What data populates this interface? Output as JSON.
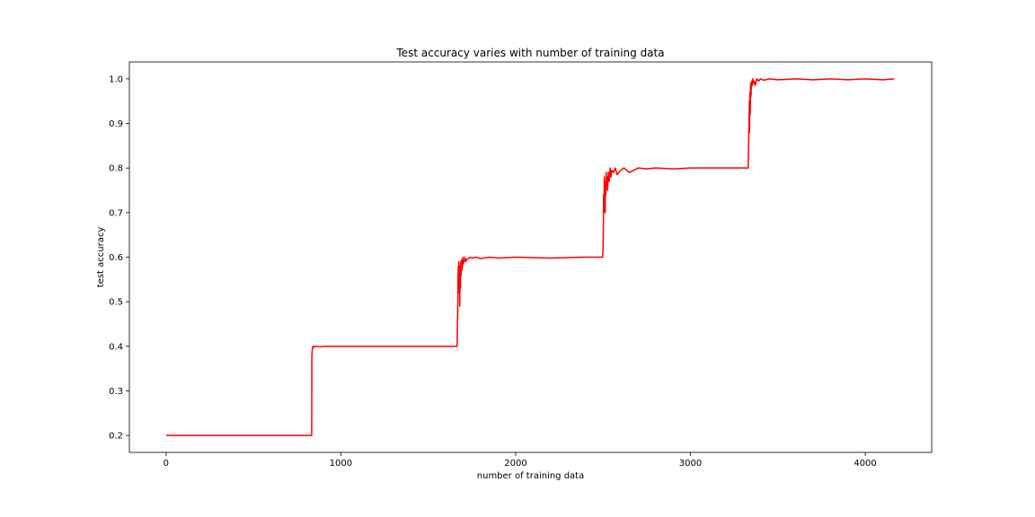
{
  "chart_data": {
    "type": "line",
    "title": "Test accuracy varies with number of training data",
    "xlabel": "number of training data",
    "ylabel": "test accuracy",
    "xlim": [
      -210,
      4380
    ],
    "ylim": [
      0.162,
      1.038
    ],
    "x_ticks": [
      0,
      1000,
      2000,
      3000,
      4000
    ],
    "x_tick_labels": [
      "0",
      "1000",
      "2000",
      "3000",
      "4000"
    ],
    "y_ticks": [
      0.2,
      0.3,
      0.4,
      0.5,
      0.6,
      0.7,
      0.8,
      0.9,
      1.0
    ],
    "y_tick_labels": [
      "0.2",
      "0.3",
      "0.4",
      "0.5",
      "0.6",
      "0.7",
      "0.8",
      "0.9",
      "1.0"
    ],
    "grid": false,
    "legend": "none",
    "series": [
      {
        "name": "test accuracy",
        "color": "#ff0000",
        "x": [
          0,
          833,
          834,
          836,
          838,
          840,
          845,
          850,
          860,
          880,
          900,
          950,
          1000,
          1200,
          1400,
          1600,
          1665,
          1667,
          1669,
          1670,
          1672,
          1673,
          1675,
          1677,
          1678,
          1680,
          1682,
          1684,
          1686,
          1688,
          1690,
          1692,
          1695,
          1698,
          1700,
          1705,
          1710,
          1715,
          1720,
          1730,
          1740,
          1750,
          1770,
          1800,
          1850,
          1900,
          2000,
          2200,
          2400,
          2498,
          2500,
          2502,
          2503,
          2505,
          2507,
          2508,
          2510,
          2512,
          2514,
          2516,
          2518,
          2520,
          2523,
          2526,
          2530,
          2535,
          2540,
          2545,
          2550,
          2560,
          2570,
          2580,
          2600,
          2620,
          2650,
          2700,
          2750,
          2800,
          2900,
          3000,
          3200,
          3330,
          3333,
          3335,
          3337,
          3338,
          3340,
          3342,
          3344,
          3346,
          3348,
          3350,
          3353,
          3356,
          3360,
          3365,
          3370,
          3380,
          3390,
          3400,
          3420,
          3450,
          3500,
          3600,
          3700,
          3800,
          3900,
          4000,
          4100,
          4166
        ],
        "y": [
          0.2,
          0.2,
          0.38,
          0.39,
          0.395,
          0.4,
          0.398,
          0.4,
          0.4,
          0.399,
          0.4,
          0.4,
          0.4,
          0.4,
          0.4,
          0.4,
          0.4,
          0.45,
          0.5,
          0.55,
          0.58,
          0.52,
          0.59,
          0.55,
          0.57,
          0.49,
          0.58,
          0.53,
          0.59,
          0.56,
          0.594,
          0.57,
          0.58,
          0.6,
          0.585,
          0.59,
          0.6,
          0.59,
          0.595,
          0.597,
          0.6,
          0.598,
          0.6,
          0.597,
          0.6,
          0.598,
          0.6,
          0.598,
          0.6,
          0.6,
          0.62,
          0.68,
          0.74,
          0.7,
          0.78,
          0.72,
          0.76,
          0.7,
          0.77,
          0.74,
          0.79,
          0.76,
          0.78,
          0.75,
          0.79,
          0.77,
          0.8,
          0.78,
          0.795,
          0.79,
          0.8,
          0.785,
          0.795,
          0.8,
          0.79,
          0.8,
          0.798,
          0.8,
          0.798,
          0.8,
          0.8,
          0.8,
          0.86,
          0.9,
          0.95,
          0.88,
          0.97,
          0.92,
          0.99,
          0.96,
          0.98,
          0.995,
          0.985,
          1.0,
          0.99,
          0.995,
          0.985,
          1.0,
          0.995,
          1.0,
          0.997,
          1.0,
          0.998,
          1.0,
          0.998,
          1.0,
          0.998,
          1.0,
          0.998,
          1.0
        ]
      }
    ]
  }
}
